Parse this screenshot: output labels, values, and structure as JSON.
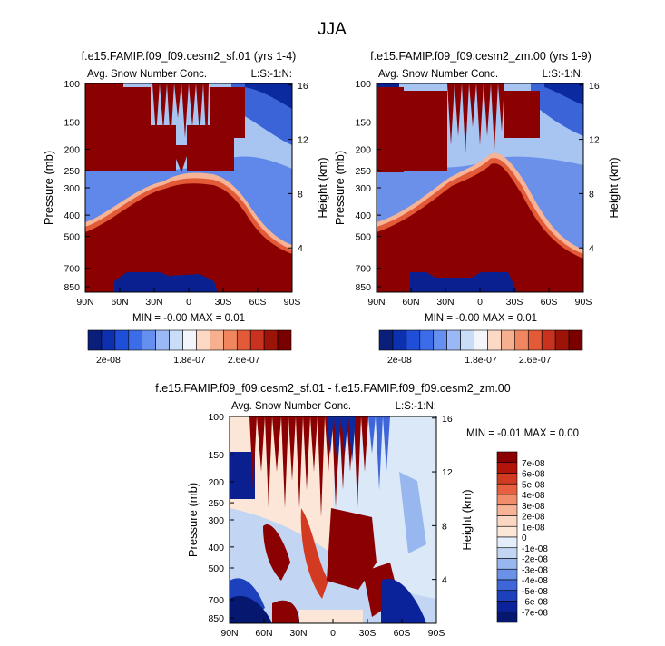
{
  "page_title": "JJA",
  "colors": {
    "dark_red": "#8b0000",
    "mid_red": "#e34a33",
    "light_blue": "#9ec3f5",
    "dark_blue": "#08208c",
    "white": "#ffffff"
  },
  "panels": [
    {
      "title": "f.e15.FAMIP.f09_f09.cesm2_sf.01 (yrs 1-4)",
      "variable_label": "Avg. Snow Number Conc.",
      "corner_label": "L:S:-1:N:",
      "left_axis_label": "Pressure (mb)",
      "right_axis_label": "Height (km)",
      "minmax_text": "MIN =  -0.00   MAX =  0.01"
    },
    {
      "title": "f.e15.FAMIP.f09_f09.cesm2_zm.00 (yrs 1-9)",
      "variable_label": "Avg. Snow Number Conc.",
      "corner_label": "L:S:-1:N:",
      "left_axis_label": "Pressure (mb)",
      "right_axis_label": "Height (km)",
      "minmax_text": "MIN =  -0.00   MAX =  0.01"
    },
    {
      "title": "f.e15.FAMIP.f09_f09.cesm2_sf.01 - f.e15.FAMIP.f09_f09.cesm2_zm.00",
      "variable_label": "Avg. Snow Number Conc.",
      "corner_label": "L:S:-1:N:",
      "left_axis_label": "Pressure (mb)",
      "right_axis_label": "Height (km)",
      "minmax_text": "MIN =  -0.01   MAX =  0.00"
    }
  ],
  "chart_data": [
    {
      "type": "heatmap",
      "title": "f.e15.FAMIP.f09_f09.cesm2_sf.01 (yrs 1-4)",
      "x_ticks": [
        "90N",
        "60N",
        "30N",
        "0",
        "30S",
        "60S",
        "90S"
      ],
      "y_ticks": [
        "100",
        "150",
        "200",
        "250",
        "300",
        "400",
        "500",
        "700",
        "850"
      ],
      "y_right_ticks": [
        "16",
        "12",
        "8",
        "4"
      ],
      "colorbar_labels": [
        "2e-08",
        "1.8e-07",
        "2.6e-07"
      ],
      "colorbar_colors": [
        "#0a1f7a",
        "#0b30b0",
        "#1f4fd8",
        "#3c6ce8",
        "#6690f0",
        "#9ab8f5",
        "#c9dcf8",
        "#f2f6fb",
        "#fbd9c4",
        "#f6b08e",
        "#f08660",
        "#e35a38",
        "#c8321f",
        "#9c1408",
        "#7a0000"
      ],
      "min": -0.0,
      "max": 0.01
    },
    {
      "type": "heatmap",
      "title": "f.e15.FAMIP.f09_f09.cesm2_zm.00 (yrs 1-9)",
      "x_ticks": [
        "90N",
        "60N",
        "30N",
        "0",
        "30S",
        "60S",
        "90S"
      ],
      "y_ticks": [
        "100",
        "150",
        "200",
        "250",
        "300",
        "400",
        "500",
        "700",
        "850"
      ],
      "y_right_ticks": [
        "16",
        "12",
        "8",
        "4"
      ],
      "colorbar_labels": [
        "2e-08",
        "1.8e-07",
        "2.6e-07"
      ],
      "colorbar_colors": [
        "#0a1f7a",
        "#0b30b0",
        "#1f4fd8",
        "#3c6ce8",
        "#6690f0",
        "#9ab8f5",
        "#c9dcf8",
        "#f2f6fb",
        "#fbd9c4",
        "#f6b08e",
        "#f08660",
        "#e35a38",
        "#c8321f",
        "#9c1408",
        "#7a0000"
      ],
      "min": -0.0,
      "max": 0.01
    },
    {
      "type": "heatmap",
      "title": "f.e15.FAMIP.f09_f09.cesm2_sf.01 - f.e15.FAMIP.f09_f09.cesm2_zm.00",
      "x_ticks": [
        "90N",
        "60N",
        "30N",
        "0",
        "30S",
        "60S",
        "90S"
      ],
      "y_ticks": [
        "100",
        "150",
        "200",
        "250",
        "300",
        "400",
        "500",
        "700",
        "850"
      ],
      "y_right_ticks": [
        "16",
        "12",
        "8",
        "4"
      ],
      "colorbar_labels": [
        "7e-08",
        "6e-08",
        "5e-08",
        "4e-08",
        "3e-08",
        "2e-08",
        "1e-08",
        "0",
        "-1e-08",
        "-2e-08",
        "-3e-08",
        "-4e-08",
        "-5e-08",
        "-6e-08",
        "-7e-08"
      ],
      "colorbar_colors": [
        "#8b0000",
        "#b3150a",
        "#d23a22",
        "#e8603f",
        "#f28d6b",
        "#f6b396",
        "#fbd7c3",
        "#fbe6d8",
        "#e3eefa",
        "#c2d6f3",
        "#98b7ee",
        "#6b91e6",
        "#3e66d8",
        "#1d40bd",
        "#0b239a",
        "#061770"
      ],
      "min": -0.01,
      "max": 0.0
    }
  ]
}
